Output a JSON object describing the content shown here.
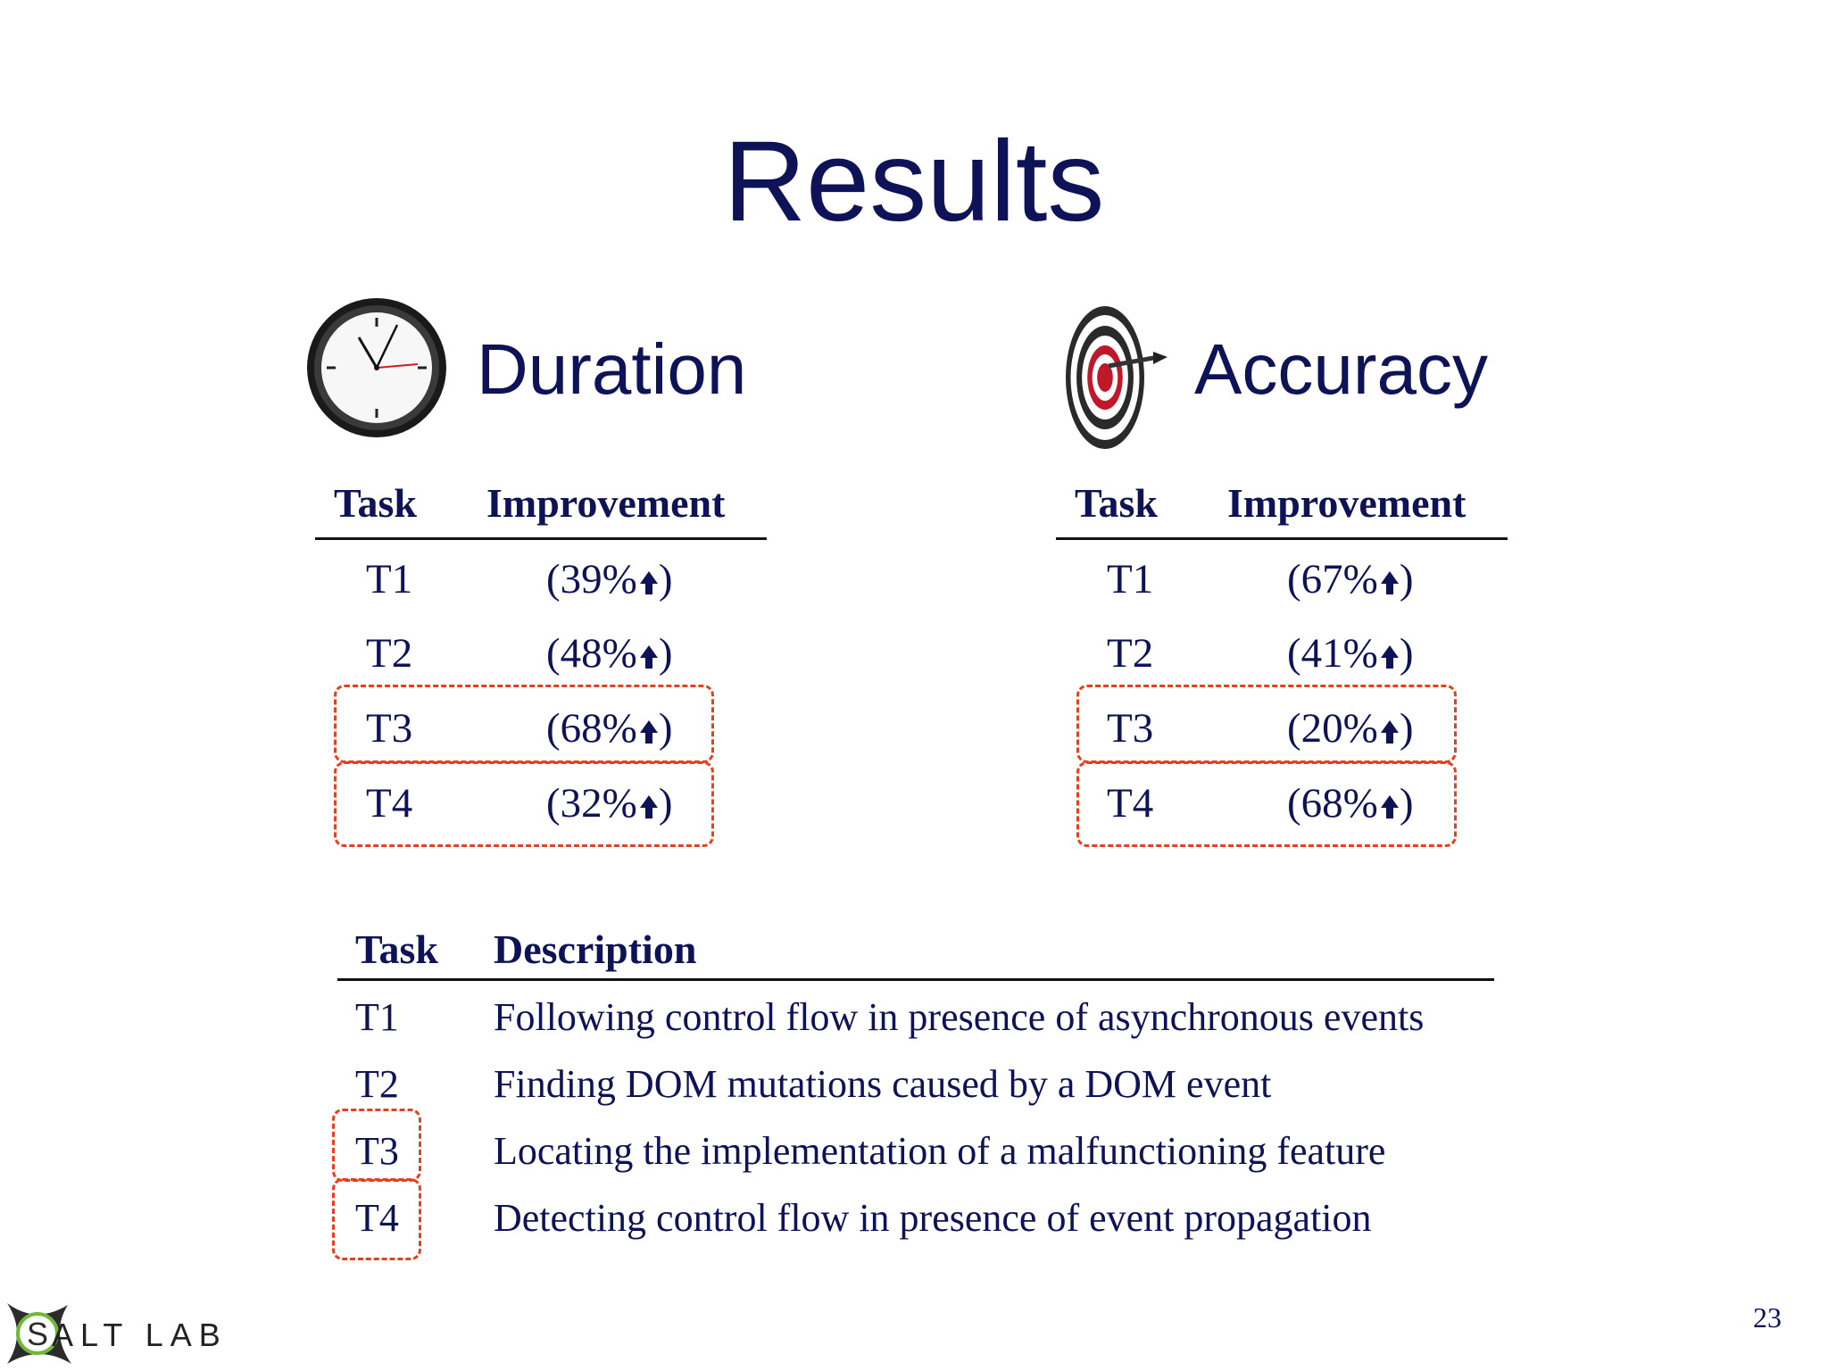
{
  "slide": {
    "title": "Results",
    "page_number": "23"
  },
  "duration": {
    "heading": "Duration",
    "icon": "clock-icon",
    "col_task": "Task",
    "col_improvement": "Improvement",
    "rows": [
      {
        "task": "T1",
        "value": "(39%",
        "close": ")"
      },
      {
        "task": "T2",
        "value": "(48%",
        "close": ")"
      },
      {
        "task": "T3",
        "value": "(68%",
        "close": ")"
      },
      {
        "task": "T4",
        "value": "(32%",
        "close": ")"
      }
    ]
  },
  "accuracy": {
    "heading": "Accuracy",
    "icon": "target-icon",
    "col_task": "Task",
    "col_improvement": "Improvement",
    "rows": [
      {
        "task": "T1",
        "value": "(67%",
        "close": ")"
      },
      {
        "task": "T2",
        "value": "(41%",
        "close": ")"
      },
      {
        "task": "T3",
        "value": "(20%",
        "close": ")"
      },
      {
        "task": "T4",
        "value": "(68%",
        "close": ")"
      }
    ]
  },
  "tasks": {
    "col_task": "Task",
    "col_description": "Description",
    "rows": [
      {
        "task": "T1",
        "description": "Following control flow in presence of asynchronous events"
      },
      {
        "task": "T2",
        "description": "Finding DOM mutations caused by a DOM event"
      },
      {
        "task": "T3",
        "description": "Locating the implementation of a malfunctioning feature"
      },
      {
        "task": "T4",
        "description": "Detecting control flow in presence of event propagation"
      }
    ]
  },
  "logo": {
    "letter": "S",
    "text": "ALT LAB"
  },
  "colors": {
    "text": "#0d1356",
    "highlight": "#e8401c",
    "target_red": "#c0182a"
  }
}
